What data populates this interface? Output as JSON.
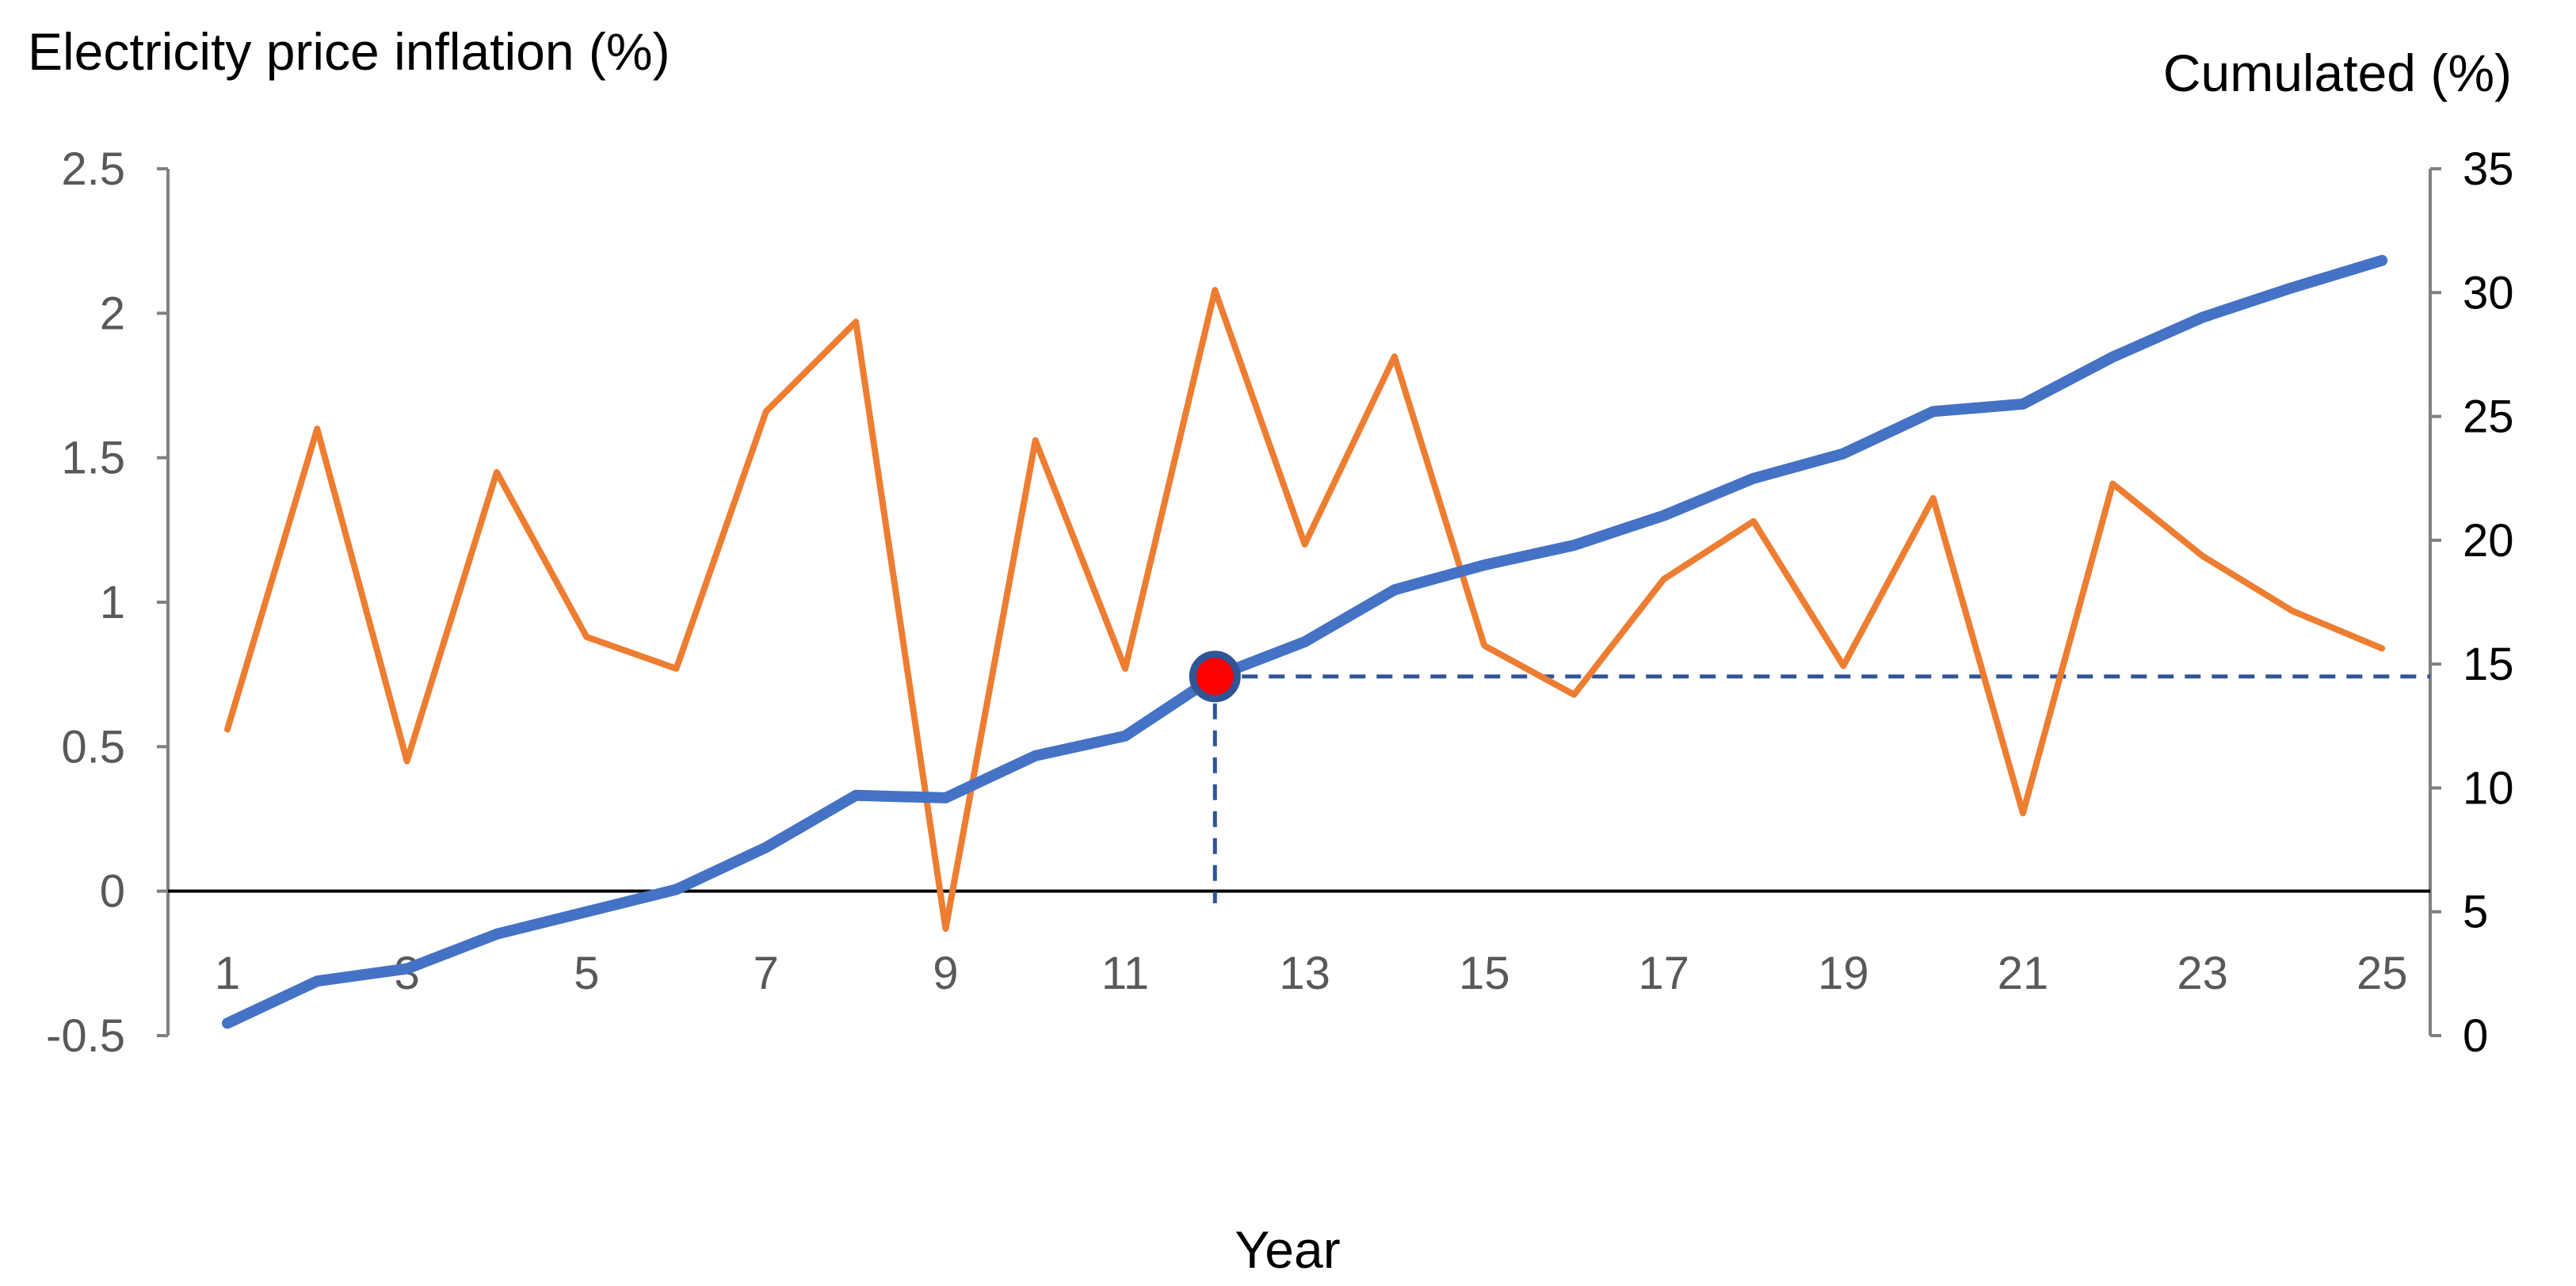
{
  "chart_data": {
    "type": "line",
    "title": "",
    "y_left_label": "Electricity price inflation (%)",
    "y_right_label": "Cumulated (%)",
    "xlabel": "Year",
    "x": [
      1,
      2,
      3,
      4,
      5,
      6,
      7,
      8,
      9,
      10,
      11,
      12,
      13,
      14,
      15,
      16,
      17,
      18,
      19,
      20,
      21,
      22,
      23,
      24,
      25
    ],
    "x_tick_labels": [
      "1",
      "3",
      "5",
      "7",
      "9",
      "11",
      "13",
      "15",
      "17",
      "19",
      "21",
      "23",
      "25"
    ],
    "y_left_ticks": [
      "-0.5",
      "0",
      "0.5",
      "1",
      "1.5",
      "2",
      "2.5"
    ],
    "y_right_ticks": [
      "0",
      "5",
      "10",
      "15",
      "20",
      "25",
      "30",
      "35"
    ],
    "y_left_range": [
      -0.5,
      2.5
    ],
    "y_right_range": [
      0,
      35
    ],
    "series": [
      {
        "axis": "left",
        "color": "#ED7D31",
        "values": [
          0.56,
          1.6,
          0.45,
          1.45,
          0.88,
          0.77,
          1.66,
          1.97,
          -0.13,
          1.56,
          0.77,
          2.08,
          1.2,
          1.85,
          0.85,
          0.68,
          1.08,
          1.28,
          0.78,
          1.36,
          0.27,
          1.41,
          1.16,
          0.97,
          0.84
        ]
      },
      {
        "axis": "right",
        "color": "#4472C4",
        "values": [
          0.5,
          2.2,
          2.7,
          4.1,
          5.0,
          5.9,
          7.6,
          9.7,
          9.6,
          11.3,
          12.1,
          14.5,
          15.9,
          18.0,
          19.0,
          19.8,
          21.0,
          22.5,
          23.5,
          25.2,
          25.5,
          27.4,
          29.0,
          30.2,
          31.3
        ]
      }
    ],
    "highlight": {
      "x": 12,
      "value": 14.5,
      "axis": "right",
      "marker_fill": "#FF0000",
      "marker_stroke": "#2F5597",
      "guide_color": "#2F5597"
    },
    "grid": false,
    "legend": "none"
  }
}
